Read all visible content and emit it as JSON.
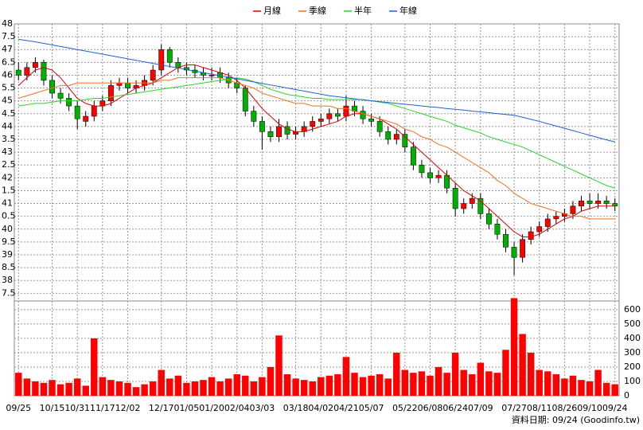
{
  "chart_data": {
    "type": "candlestick",
    "categories": [
      "09/25",
      null,
      null,
      null,
      "10/15",
      null,
      null,
      "10/31",
      null,
      null,
      "11/17",
      null,
      null,
      "12/02",
      null,
      null,
      null,
      "12/17",
      null,
      null,
      "01/05",
      null,
      null,
      "01/20",
      null,
      null,
      "02/04",
      null,
      null,
      "03/03",
      null,
      null,
      null,
      "03/18",
      null,
      null,
      "04/02",
      null,
      null,
      "04/21",
      null,
      null,
      "05/07",
      null,
      null,
      null,
      "05/22",
      null,
      null,
      "06/08",
      null,
      null,
      "06/24",
      null,
      null,
      "07/09",
      null,
      null,
      null,
      "07/27",
      null,
      null,
      "08/11",
      null,
      null,
      "08/26",
      null,
      null,
      "09/10",
      null,
      null,
      "09/24"
    ],
    "ohlc": {
      "up_color": "#ff0000",
      "down_color": "#00b000",
      "open": [
        46.2,
        46.0,
        46.3,
        46.5,
        45.8,
        45.3,
        45.1,
        44.8,
        44.2,
        44.4,
        44.8,
        45.0,
        45.6,
        45.7,
        45.5,
        45.6,
        45.8,
        46.2,
        47.0,
        46.5,
        46.3,
        46.2,
        46.1,
        46.0,
        46.1,
        45.9,
        45.7,
        45.5,
        44.6,
        44.2,
        43.8,
        43.6,
        44.0,
        43.7,
        43.8,
        44.0,
        44.2,
        44.3,
        44.5,
        44.4,
        44.8,
        44.6,
        44.3,
        44.2,
        43.8,
        43.5,
        43.7,
        43.2,
        42.5,
        42.2,
        42.0,
        42.1,
        41.6,
        40.8,
        41.0,
        41.2,
        40.6,
        40.2,
        39.8,
        39.3,
        38.9,
        39.6,
        39.9,
        40.1,
        40.4,
        40.5,
        40.6,
        40.9,
        41.1,
        41.0,
        41.1,
        41.0
      ],
      "high": [
        46.5,
        46.5,
        46.7,
        46.6,
        46.0,
        45.5,
        45.3,
        45.0,
        44.6,
        45.0,
        45.2,
        45.8,
        45.9,
        45.9,
        45.8,
        46.0,
        46.4,
        47.2,
        47.1,
        46.7,
        46.5,
        46.4,
        46.3,
        46.3,
        46.3,
        46.1,
        45.9,
        45.6,
        44.8,
        44.4,
        44.0,
        44.3,
        44.2,
        44.0,
        44.2,
        44.4,
        44.5,
        44.7,
        44.7,
        45.2,
        45.0,
        44.8,
        44.5,
        44.4,
        44.0,
        43.9,
        43.9,
        43.4,
        42.7,
        42.4,
        42.3,
        42.3,
        41.8,
        41.2,
        41.4,
        41.4,
        40.8,
        40.4,
        40.0,
        39.5,
        39.8,
        40.1,
        40.3,
        40.6,
        40.7,
        40.8,
        41.1,
        41.3,
        41.4,
        41.4,
        41.3,
        41.2
      ],
      "low": [
        45.8,
        45.8,
        46.1,
        45.6,
        45.1,
        44.9,
        44.6,
        43.9,
        44.0,
        44.2,
        44.6,
        44.8,
        45.4,
        45.3,
        45.3,
        45.4,
        45.6,
        46.0,
        46.3,
        46.1,
        46.0,
        45.9,
        45.8,
        45.8,
        45.7,
        45.5,
        45.3,
        44.4,
        44.0,
        43.1,
        43.4,
        43.4,
        43.5,
        43.5,
        43.6,
        43.8,
        44.0,
        44.1,
        44.2,
        44.2,
        44.4,
        44.1,
        44.0,
        43.6,
        43.3,
        43.3,
        43.0,
        42.3,
        42.0,
        41.8,
        41.8,
        41.4,
        40.5,
        40.6,
        40.8,
        40.4,
        40.0,
        39.6,
        39.1,
        38.2,
        38.7,
        39.4,
        39.7,
        39.9,
        40.2,
        40.3,
        40.4,
        40.7,
        40.8,
        40.8,
        40.8,
        40.7
      ],
      "close": [
        46.0,
        46.3,
        46.5,
        45.8,
        45.3,
        45.1,
        44.8,
        44.3,
        44.4,
        44.8,
        45.0,
        45.6,
        45.7,
        45.5,
        45.6,
        45.8,
        46.2,
        47.0,
        46.5,
        46.3,
        46.2,
        46.1,
        46.0,
        46.0,
        45.9,
        45.7,
        45.5,
        44.6,
        44.2,
        43.8,
        43.6,
        44.0,
        43.7,
        43.8,
        44.0,
        44.2,
        44.3,
        44.5,
        44.4,
        44.8,
        44.6,
        44.3,
        44.2,
        43.8,
        43.5,
        43.7,
        43.2,
        42.5,
        42.2,
        42.0,
        42.1,
        41.6,
        40.8,
        41.0,
        41.2,
        40.6,
        40.2,
        39.8,
        39.3,
        38.9,
        39.6,
        39.9,
        40.1,
        40.4,
        40.5,
        40.6,
        40.9,
        41.1,
        41.0,
        41.1,
        41.0,
        40.9
      ]
    },
    "series": [
      {
        "name": "月線",
        "color": "#e00000",
        "values": [
          45.6,
          45.9,
          46.2,
          46.3,
          46.2,
          45.9,
          45.5,
          45.1,
          44.9,
          44.8,
          44.8,
          44.9,
          45.1,
          45.3,
          45.5,
          45.6,
          45.7,
          45.9,
          46.1,
          46.3,
          46.4,
          46.4,
          46.3,
          46.2,
          46.1,
          46.0,
          45.8,
          45.5,
          45.1,
          44.7,
          44.4,
          44.1,
          43.9,
          43.8,
          43.8,
          43.9,
          44.0,
          44.1,
          44.2,
          44.4,
          44.5,
          44.5,
          44.4,
          44.3,
          44.1,
          43.9,
          43.6,
          43.3,
          43.0,
          42.7,
          42.4,
          42.1,
          41.8,
          41.5,
          41.3,
          41.1,
          40.8,
          40.5,
          40.2,
          39.9,
          39.7,
          39.7,
          39.8,
          40.0,
          40.2,
          40.4,
          40.5,
          40.7,
          40.8,
          40.9,
          40.9,
          40.9
        ]
      },
      {
        "name": "季線",
        "color": "#f07020",
        "values": [
          45.1,
          45.2,
          45.3,
          45.4,
          45.5,
          45.6,
          45.6,
          45.7,
          45.7,
          45.7,
          45.7,
          45.7,
          45.7,
          45.7,
          45.7,
          45.7,
          45.7,
          45.8,
          45.8,
          45.9,
          45.9,
          45.9,
          45.9,
          45.9,
          45.9,
          45.8,
          45.7,
          45.6,
          45.5,
          45.3,
          45.2,
          45.1,
          45.0,
          44.9,
          44.9,
          44.8,
          44.8,
          44.8,
          44.7,
          44.7,
          44.6,
          44.5,
          44.4,
          44.3,
          44.2,
          44.1,
          43.9,
          43.8,
          43.6,
          43.5,
          43.3,
          43.2,
          43.0,
          42.8,
          42.6,
          42.4,
          42.2,
          41.9,
          41.7,
          41.4,
          41.2,
          41.0,
          40.9,
          40.8,
          40.7,
          40.6,
          40.5,
          40.5,
          40.4,
          40.4,
          40.4,
          40.4
        ]
      },
      {
        "name": "半年",
        "color": "#30d030",
        "values": [
          44.8,
          44.85,
          44.9,
          44.9,
          44.95,
          45.0,
          45.0,
          45.0,
          45.05,
          45.1,
          45.1,
          45.15,
          45.2,
          45.25,
          45.3,
          45.35,
          45.4,
          45.45,
          45.5,
          45.55,
          45.6,
          45.65,
          45.7,
          45.75,
          45.8,
          45.85,
          45.9,
          45.85,
          45.75,
          45.6,
          45.45,
          45.35,
          45.25,
          45.2,
          45.15,
          45.1,
          45.1,
          45.05,
          45.05,
          45.05,
          45.05,
          45.05,
          45.0,
          44.95,
          44.9,
          44.8,
          44.7,
          44.6,
          44.5,
          44.4,
          44.3,
          44.2,
          44.05,
          43.95,
          43.85,
          43.75,
          43.6,
          43.5,
          43.4,
          43.3,
          43.2,
          43.05,
          42.9,
          42.75,
          42.6,
          42.45,
          42.3,
          42.15,
          42.0,
          41.85,
          41.7,
          41.6
        ]
      },
      {
        "name": "年線",
        "color": "#2060d0",
        "values": [
          47.4,
          47.35,
          47.3,
          47.24,
          47.18,
          47.12,
          47.06,
          47.0,
          46.94,
          46.88,
          46.82,
          46.76,
          46.7,
          46.64,
          46.58,
          46.52,
          46.46,
          46.4,
          46.34,
          46.28,
          46.22,
          46.16,
          46.1,
          46.04,
          45.98,
          45.92,
          45.86,
          45.8,
          45.74,
          45.68,
          45.62,
          45.56,
          45.5,
          45.44,
          45.38,
          45.32,
          45.26,
          45.2,
          45.16,
          45.12,
          45.08,
          45.04,
          45.0,
          44.97,
          44.94,
          44.9,
          44.87,
          44.84,
          44.8,
          44.77,
          44.74,
          44.7,
          44.67,
          44.64,
          44.6,
          44.57,
          44.54,
          44.5,
          44.47,
          44.44,
          44.36,
          44.28,
          44.2,
          44.11,
          44.02,
          43.93,
          43.84,
          43.75,
          43.66,
          43.57,
          43.48,
          43.4
        ]
      }
    ],
    "volume": {
      "color": "#ff0000",
      "axis": "y2",
      "values": [
        160,
        120,
        100,
        90,
        110,
        80,
        90,
        120,
        70,
        400,
        130,
        110,
        100,
        90,
        60,
        80,
        100,
        180,
        120,
        140,
        90,
        100,
        110,
        130,
        100,
        120,
        150,
        140,
        100,
        130,
        200,
        420,
        150,
        120,
        110,
        100,
        130,
        140,
        150,
        270,
        160,
        130,
        140,
        150,
        120,
        300,
        180,
        160,
        170,
        140,
        200,
        160,
        300,
        180,
        150,
        230,
        170,
        160,
        320,
        680,
        430,
        300,
        180,
        170,
        150,
        120,
        140,
        110,
        100,
        180,
        90,
        80
      ]
    },
    "ylim": [
      37.2,
      48
    ],
    "yticks": [
      {
        "value": 37.5,
        "label": "7.5"
      },
      38,
      {
        "value": 38.5,
        "label": "8.5"
      },
      39,
      {
        "value": 39.5,
        "label": "9.5"
      },
      40,
      {
        "value": 40.5,
        "label": "0.5"
      },
      41,
      {
        "value": 41.5,
        "label": "1.5"
      },
      42,
      {
        "value": 42.5,
        "label": "2.5"
      },
      43,
      {
        "value": 43.5,
        "label": "3.5"
      },
      44,
      {
        "value": 44.5,
        "label": "4.5"
      },
      45,
      {
        "value": 45.5,
        "label": "5.5"
      },
      46,
      {
        "value": 46.5,
        "label": "6.5"
      },
      47,
      {
        "value": 47.5,
        "label": "7.5"
      },
      48
    ],
    "y2lim": [
      0,
      660
    ],
    "y2ticks": [
      0,
      100,
      200,
      300,
      400,
      500,
      600
    ],
    "grid": true,
    "footer": "資料日期: 09/24  (Goodinfo.tw)"
  }
}
